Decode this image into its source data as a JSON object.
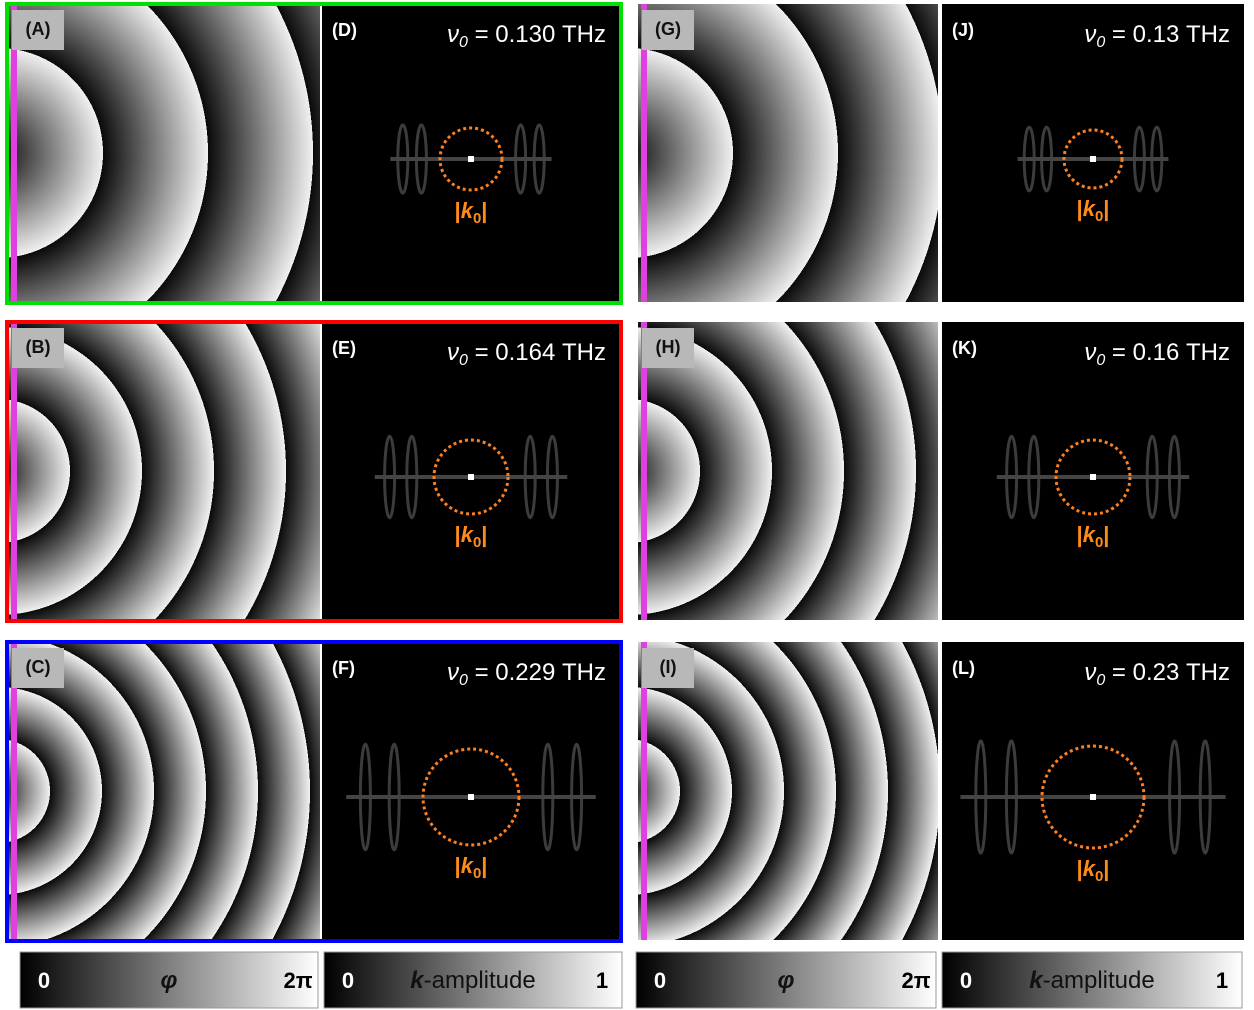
{
  "phase_panels": [
    {
      "label": "(A)"
    },
    {
      "label": "(B)"
    },
    {
      "label": "(C)"
    },
    {
      "label": "(G)"
    },
    {
      "label": "(H)"
    },
    {
      "label": "(I)"
    }
  ],
  "spectra": [
    {
      "label": "(D)",
      "nu": "ν",
      "nu_sub": "0",
      "freq": " = 0.130 THz",
      "k_open": "|",
      "k": "k",
      "k_sub": "0",
      "k_close": "|"
    },
    {
      "label": "(E)",
      "nu": "ν",
      "nu_sub": "0",
      "freq": " = 0.164 THz",
      "k_open": "|",
      "k": "k",
      "k_sub": "0",
      "k_close": "|"
    },
    {
      "label": "(F)",
      "nu": "ν",
      "nu_sub": "0",
      "freq": " = 0.229 THz",
      "k_open": "|",
      "k": "k",
      "k_sub": "0",
      "k_close": "|"
    },
    {
      "label": "(J)",
      "nu": "ν",
      "nu_sub": "0",
      "freq": " = 0.13 THz",
      "k_open": "|",
      "k": "k",
      "k_sub": "0",
      "k_close": "|"
    },
    {
      "label": "(K)",
      "nu": "ν",
      "nu_sub": "0",
      "freq": " = 0.16 THz",
      "k_open": "|",
      "k": "k",
      "k_sub": "0",
      "k_close": "|"
    },
    {
      "label": "(L)",
      "nu": "ν",
      "nu_sub": "0",
      "freq": " = 0.23 THz",
      "k_open": "|",
      "k": "k",
      "k_sub": "0",
      "k_close": "|"
    }
  ],
  "colorbars": [
    {
      "min": "0",
      "symbol": "φ",
      "max": "2π"
    },
    {
      "min": "0",
      "symbol": "k",
      "symbol_rest": "-amplitude",
      "max": "1"
    },
    {
      "min": "0",
      "symbol": "φ",
      "max": "2π"
    },
    {
      "min": "0",
      "symbol": "k",
      "symbol_rest": "-amplitude",
      "max": "1"
    }
  ]
}
